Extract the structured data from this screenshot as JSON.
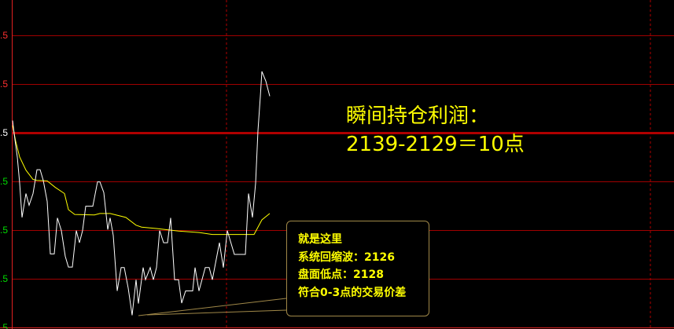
{
  "chart_data": {
    "type": "line",
    "title": "",
    "xlabel": "",
    "ylabel": "",
    "grid": true,
    "y_tick_labels": [
      ".5",
      ".5",
      ".5",
      ".5",
      ".5",
      ".5",
      ".5"
    ],
    "y_tick_colors": [
      "#ff3030",
      "#ff3030",
      "#ffffff",
      "#00dd00",
      "#00dd00",
      "#00dd00",
      "#00dd00"
    ],
    "y_ticks_gridline_units": [
      2,
      1,
      0,
      -1,
      -2,
      -3,
      -4
    ],
    "series": [
      {
        "color": "#ffffff",
        "points": [
          [
            1,
            0.25
          ],
          [
            3,
            -0.02
          ],
          [
            7,
            -0.5
          ],
          [
            10,
            -1.04
          ],
          [
            13,
            -1.74
          ],
          [
            18,
            -1.25
          ],
          [
            22,
            -1.49
          ],
          [
            27,
            -1.25
          ],
          [
            32,
            -0.76
          ],
          [
            36,
            -0.76
          ],
          [
            40,
            -0.98
          ],
          [
            45,
            -1.41
          ],
          [
            49,
            -2.49
          ],
          [
            54,
            -2.49
          ],
          [
            58,
            -1.75
          ],
          [
            63,
            -2.01
          ],
          [
            68,
            -2.54
          ],
          [
            72,
            -2.76
          ],
          [
            77,
            -2.76
          ],
          [
            82,
            -2.01
          ],
          [
            86,
            -2.26
          ],
          [
            90,
            -2.01
          ],
          [
            94,
            -1.51
          ],
          [
            103,
            -1.51
          ],
          [
            109,
            -1.01
          ],
          [
            112,
            -1.01
          ],
          [
            117,
            -1.23
          ],
          [
            122,
            -1.99
          ],
          [
            125,
            -1.75
          ],
          [
            129,
            -2.11
          ],
          [
            134,
            -3.25
          ],
          [
            139,
            -2.77
          ],
          [
            143,
            -2.77
          ],
          [
            148,
            -3.19
          ],
          [
            153,
            -3.75
          ],
          [
            158,
            -3.02
          ],
          [
            161,
            -3.51
          ],
          [
            167,
            -2.77
          ],
          [
            170,
            -3.02
          ],
          [
            176,
            -2.77
          ],
          [
            180,
            -3.02
          ],
          [
            184,
            -2.77
          ],
          [
            188,
            -2.01
          ],
          [
            193,
            -2.26
          ],
          [
            198,
            -2.26
          ],
          [
            202,
            -1.75
          ],
          [
            207,
            -3.02
          ],
          [
            212,
            -3.02
          ],
          [
            216,
            -3.5
          ],
          [
            221,
            -3.25
          ],
          [
            230,
            -3.25
          ],
          [
            233,
            -2.77
          ],
          [
            238,
            -3.25
          ],
          [
            246,
            -2.77
          ],
          [
            251,
            -2.77
          ],
          [
            255,
            -3.02
          ],
          [
            264,
            -2.26
          ],
          [
            269,
            -2.77
          ],
          [
            274,
            -2.01
          ],
          [
            283,
            -2.5
          ],
          [
            297,
            -2.5
          ],
          [
            301,
            -1.25
          ],
          [
            306,
            -1.74
          ],
          [
            310,
            -1.04
          ],
          [
            313,
            0.04
          ],
          [
            316,
            0.74
          ],
          [
            318,
            1.26
          ],
          [
            323,
            1.06
          ],
          [
            328,
            0.75
          ]
        ]
      },
      {
        "color": "#ffff00",
        "points": [
          [
            1,
            0.15
          ],
          [
            5,
            -0.18
          ],
          [
            10,
            -0.5
          ],
          [
            18,
            -0.77
          ],
          [
            27,
            -0.96
          ],
          [
            32,
            -0.98
          ],
          [
            45,
            -0.99
          ],
          [
            55,
            -1.12
          ],
          [
            67,
            -1.25
          ],
          [
            72,
            -1.58
          ],
          [
            80,
            -1.68
          ],
          [
            105,
            -1.69
          ],
          [
            112,
            -1.66
          ],
          [
            125,
            -1.66
          ],
          [
            145,
            -1.74
          ],
          [
            158,
            -1.9
          ],
          [
            165,
            -1.94
          ],
          [
            185,
            -1.97
          ],
          [
            212,
            -2.02
          ],
          [
            238,
            -2.05
          ],
          [
            255,
            -2.09
          ],
          [
            308,
            -2.09
          ],
          [
            318,
            -1.79
          ],
          [
            328,
            -1.66
          ]
        ]
      }
    ]
  },
  "annotation": {
    "line1": "瞬间持仓利润：",
    "line2": "2139-2129＝10点"
  },
  "callout": {
    "lines": [
      "就是这里",
      "系统回缩波：2126",
      "盘面低点：2128",
      "符合0-3点的交易价差"
    ]
  },
  "colors": {
    "grid": "#a00000",
    "axis": "#ff2020",
    "price": "#ffffff",
    "average": "#ffff00",
    "text": "#ffff00",
    "callout_border": "#a08848"
  }
}
